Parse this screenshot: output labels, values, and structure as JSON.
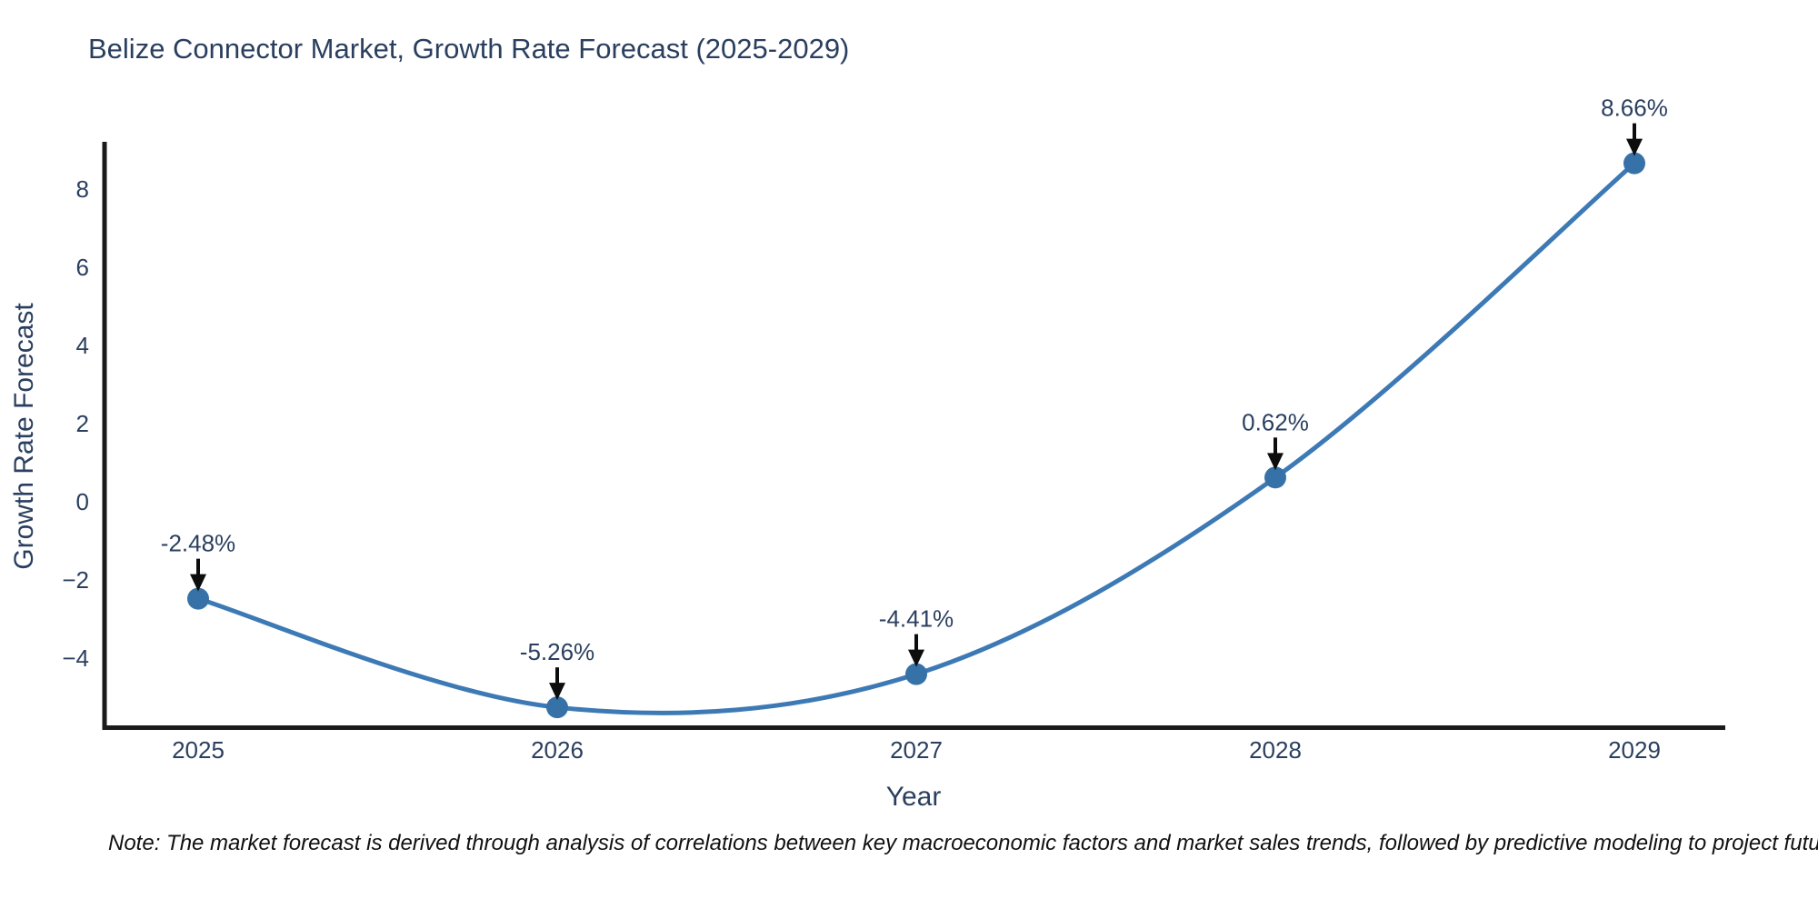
{
  "title": "Belize Connector Market, Growth Rate Forecast (2025-2029)",
  "note": "Note: The market forecast is derived through analysis of correlations between key macroeconomic factors and market sales trends, followed by predictive modeling to project future sales",
  "colors": {
    "line": "#3d7ab5",
    "marker": "#3672a8",
    "axis": "#1a1a1a",
    "text": "#2a3f5f",
    "arrow": "#0d0d0d",
    "background": "#ffffff"
  },
  "chart_data": {
    "type": "line",
    "title": "Belize Connector Market, Growth Rate Forecast (2025-2029)",
    "xlabel": "Year",
    "ylabel": "Growth Rate Forecast",
    "x": [
      2025,
      2026,
      2027,
      2028,
      2029
    ],
    "series": [
      {
        "name": "Growth Rate Forecast",
        "values": [
          -2.48,
          -5.26,
          -4.41,
          0.62,
          8.66
        ]
      }
    ],
    "point_labels": [
      "-2.48%",
      "-5.26%",
      "-4.41%",
      "0.62%",
      "8.66%"
    ],
    "x_tick_labels": [
      "2025",
      "2026",
      "2027",
      "2028",
      "2029"
    ],
    "y_tick_values": [
      8,
      6,
      4,
      2,
      0,
      -2,
      -4
    ],
    "y_tick_labels": [
      "8",
      "6",
      "4",
      "2",
      "0",
      "−2",
      "−4"
    ],
    "ylim": [
      -5.8,
      9.2
    ],
    "line_shape": "spline",
    "grid": false,
    "legend": "none",
    "annotation_style": "label-above-with-down-arrow"
  }
}
